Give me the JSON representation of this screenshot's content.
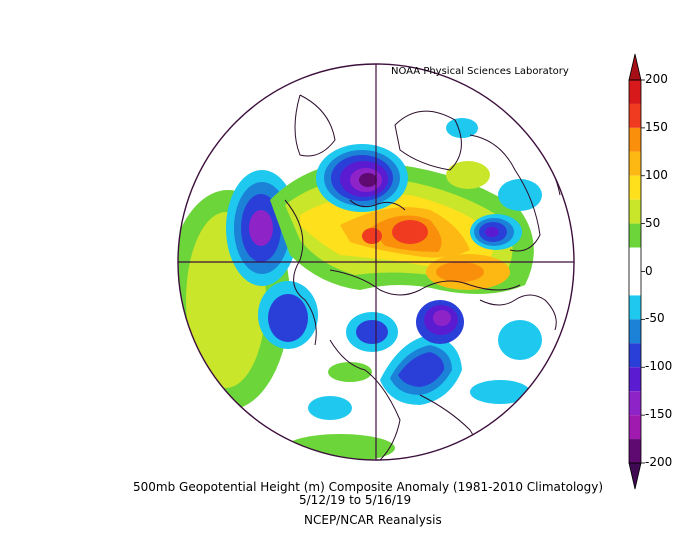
{
  "source_label": "NOAA Physical Sciences Laboratory",
  "title": "500mb Geopotential Height (m) Composite Anomaly (1981-2010 Climatology)",
  "date_range": {
    "start": "5/12/19",
    "end": "5/16/19",
    "separator": "to"
  },
  "date_text": "5/12/19   to 5/16/19",
  "dataset": "NCEP/NCAR Reanalysis",
  "colorbar": {
    "labels": [
      "200",
      "150",
      "100",
      "50",
      "0",
      "-50",
      "-100",
      "-150",
      "-200"
    ],
    "bins": [
      {
        "from": 175,
        "to": 200,
        "color": "#d7191c"
      },
      {
        "from": 150,
        "to": 175,
        "color": "#f03b20"
      },
      {
        "from": 125,
        "to": 150,
        "color": "#f98f0b"
      },
      {
        "from": 100,
        "to": 125,
        "color": "#fdb814"
      },
      {
        "from": 75,
        "to": 100,
        "color": "#fee01c"
      },
      {
        "from": 50,
        "to": 75,
        "color": "#c9e62a"
      },
      {
        "from": 25,
        "to": 50,
        "color": "#6cd53a"
      },
      {
        "from": -25,
        "to": 25,
        "color": "#ffffff"
      },
      {
        "from": -50,
        "to": -25,
        "color": "#1ec8ef"
      },
      {
        "from": -75,
        "to": -50,
        "color": "#1b82d8"
      },
      {
        "from": -100,
        "to": -75,
        "color": "#2a3fd8"
      },
      {
        "from": -125,
        "to": -100,
        "color": "#5b1bd0"
      },
      {
        "from": -150,
        "to": -125,
        "color": "#8e24c8"
      },
      {
        "from": -175,
        "to": -150,
        "color": "#a01ab0"
      },
      {
        "from": -200,
        "to": -175,
        "color": "#5f0a70"
      }
    ],
    "over_color": "#a50f15",
    "under_color": "#3f0a52",
    "range": [
      -200,
      200
    ],
    "unit": "m"
  },
  "map": {
    "projection": "north-polar-stereographic",
    "boundary_color": "#3c0f3c",
    "coastline_color": "#2b0d2b"
  }
}
